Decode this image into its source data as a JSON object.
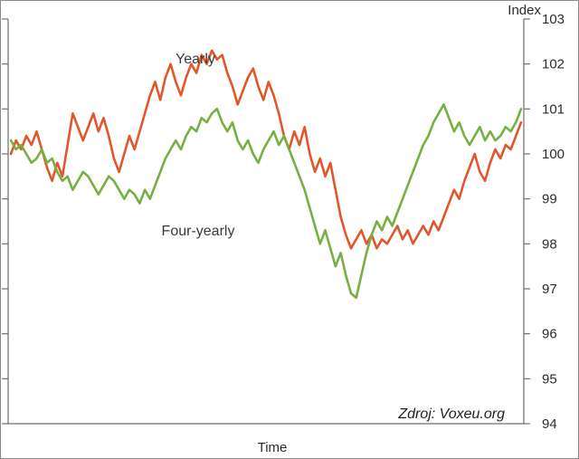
{
  "figure": {
    "ylabel_top": "Index",
    "xlabel": "Time",
    "source": "Zdroj: Voxeu.org",
    "series_labels": {
      "yearly": "Yearly",
      "four_yearly": "Four-yearly"
    }
  },
  "colors": {
    "yearly": "#e2562b",
    "four_yearly": "#76b043",
    "axis": "#6e6e6e",
    "text": "#2b2b2b"
  },
  "chart_data": {
    "type": "line",
    "title": "",
    "xlabel": "Time",
    "ylabel": "Index",
    "ylim": [
      94,
      103
    ],
    "yticks": [
      94,
      95,
      96,
      97,
      98,
      99,
      100,
      101,
      102,
      103
    ],
    "grid": false,
    "legend": "inline-labels",
    "x_axis_note": "x axis unlabeled (time index 0-99)",
    "series": [
      {
        "name": "Yearly",
        "color": "#e2562b",
        "values": [
          100.0,
          100.3,
          100.1,
          100.4,
          100.2,
          100.5,
          100.1,
          99.7,
          99.4,
          99.8,
          99.5,
          100.2,
          100.9,
          100.6,
          100.3,
          100.6,
          100.9,
          100.5,
          100.8,
          100.4,
          99.9,
          99.6,
          100.0,
          100.4,
          100.1,
          100.5,
          100.9,
          101.3,
          101.6,
          101.2,
          101.7,
          102.0,
          101.6,
          101.3,
          101.7,
          102.0,
          101.8,
          102.2,
          102.0,
          102.3,
          102.1,
          102.2,
          101.8,
          101.5,
          101.1,
          101.4,
          101.7,
          101.9,
          101.5,
          101.2,
          101.6,
          101.3,
          100.9,
          100.4,
          100.1,
          100.5,
          100.2,
          100.6,
          100.0,
          99.6,
          99.9,
          99.5,
          99.8,
          99.2,
          98.6,
          98.2,
          97.9,
          98.1,
          98.3,
          98.0,
          98.2,
          97.9,
          98.1,
          98.0,
          98.2,
          98.4,
          98.1,
          98.3,
          98.0,
          98.2,
          98.4,
          98.2,
          98.5,
          98.3,
          98.6,
          98.9,
          99.2,
          99.0,
          99.4,
          99.7,
          100.0,
          99.6,
          99.4,
          99.8,
          100.1,
          99.9,
          100.2,
          100.1,
          100.4,
          100.7
        ]
      },
      {
        "name": "Four-yearly",
        "color": "#76b043",
        "values": [
          100.3,
          100.1,
          100.2,
          100.0,
          99.8,
          99.9,
          100.1,
          99.8,
          99.9,
          99.6,
          99.4,
          99.5,
          99.2,
          99.4,
          99.6,
          99.5,
          99.3,
          99.1,
          99.3,
          99.5,
          99.4,
          99.2,
          99.0,
          99.2,
          99.1,
          98.9,
          99.2,
          99.0,
          99.3,
          99.6,
          99.9,
          100.1,
          100.3,
          100.1,
          100.4,
          100.6,
          100.5,
          100.8,
          100.7,
          100.9,
          101.0,
          100.7,
          100.5,
          100.7,
          100.3,
          100.1,
          100.3,
          100.0,
          99.8,
          100.1,
          100.3,
          100.5,
          100.2,
          100.4,
          100.1,
          99.8,
          99.5,
          99.2,
          98.8,
          98.4,
          98.0,
          98.3,
          97.9,
          97.5,
          97.8,
          97.3,
          96.9,
          96.8,
          97.3,
          97.8,
          98.2,
          98.5,
          98.3,
          98.6,
          98.4,
          98.7,
          99.0,
          99.3,
          99.6,
          99.9,
          100.2,
          100.4,
          100.7,
          100.9,
          101.1,
          100.8,
          100.5,
          100.7,
          100.4,
          100.2,
          100.4,
          100.6,
          100.3,
          100.5,
          100.3,
          100.4,
          100.6,
          100.5,
          100.7,
          101.0
        ]
      }
    ]
  }
}
